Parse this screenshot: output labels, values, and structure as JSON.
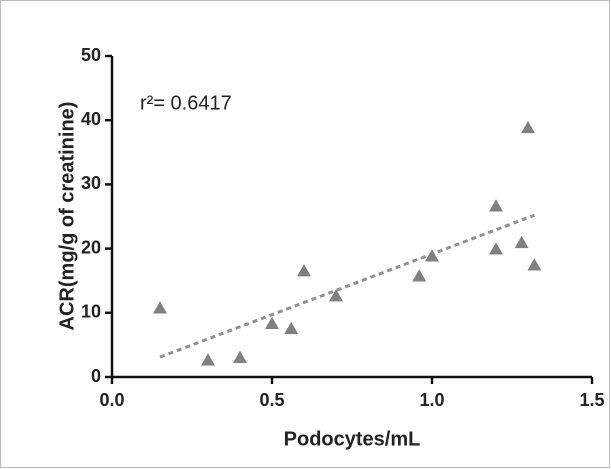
{
  "chart_data": {
    "type": "scatter",
    "x_label": "Podocytes/mL",
    "y_label": "ACR(mg/g of creatinine)",
    "annotation": "r²= 0.6417",
    "x": [
      0.15,
      0.3,
      0.4,
      0.5,
      0.56,
      0.6,
      0.7,
      0.96,
      1.0,
      1.2,
      1.2,
      1.28,
      1.3,
      1.32
    ],
    "values": [
      10.7,
      2.6,
      3.0,
      8.3,
      7.5,
      16.5,
      12.6,
      15.7,
      18.8,
      26.6,
      19.9,
      20.9,
      38.8,
      17.4
    ],
    "color": "#808080",
    "trendline": {
      "x": [
        0.15,
        1.32
      ],
      "values": [
        3.1,
        25.2
      ],
      "color": "#909090"
    },
    "xlim": [
      0,
      1.5
    ],
    "xticks": [
      {
        "value": 0,
        "label": "0.0"
      },
      {
        "value": 0.5,
        "label": "0.5"
      },
      {
        "value": 1,
        "label": "1.0"
      },
      {
        "value": 1.5,
        "label": "1.5"
      }
    ],
    "ylim": [
      0,
      50
    ],
    "yticks": [
      0,
      10,
      20,
      30,
      40,
      50
    ]
  }
}
